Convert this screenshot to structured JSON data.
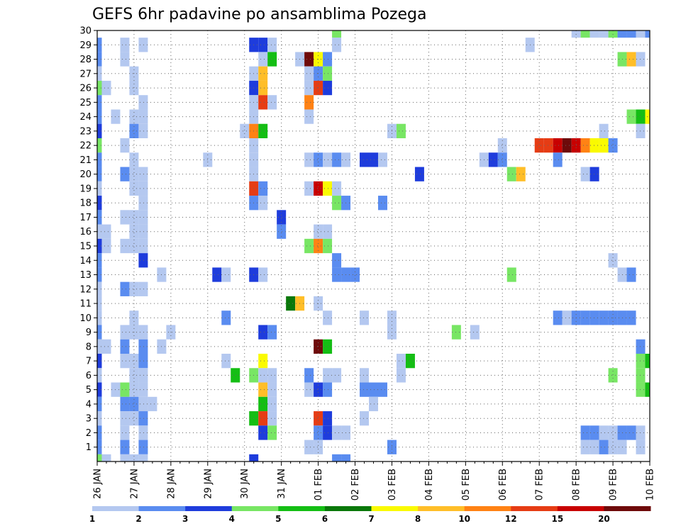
{
  "chart_data": {
    "type": "heatmap",
    "title": "GEFS 6hr padavine po ansamblima Pozega",
    "xlabel": "",
    "ylabel": "",
    "x_start": "26 JAN 00Z",
    "x_step_hours": 6,
    "x_steps": 60,
    "x_tick_labels": [
      "26 JAN",
      "27 JAN",
      "28 JAN",
      "29 JAN",
      "30 JAN",
      "31 JAN",
      "01 FEB",
      "02 FEB",
      "03 FEB",
      "04 FEB",
      "05 FEB",
      "06 FEB",
      "07 FEB",
      "08 FEB",
      "09 FEB",
      "10 FEB"
    ],
    "y_range": [
      0,
      30
    ],
    "y_ticks": [
      1,
      2,
      3,
      4,
      5,
      6,
      7,
      8,
      9,
      10,
      11,
      12,
      13,
      14,
      15,
      16,
      17,
      18,
      19,
      20,
      21,
      22,
      23,
      24,
      25,
      26,
      27,
      28,
      29,
      30
    ],
    "grid": true,
    "colorbar": {
      "labels": [
        "1",
        "2",
        "3",
        "4",
        "5",
        "6",
        "7",
        "8",
        "10",
        "12",
        "15",
        "20"
      ],
      "colors": [
        "#b4c8f0",
        "#5a8cf0",
        "#1e3cdc",
        "#78e664",
        "#14be14",
        "#0a780a",
        "#fafa00",
        "#ffbe28",
        "#ff8214",
        "#e63c14",
        "#c80000",
        "#6e0a0a"
      ]
    },
    "cells": [
      [
        0,
        29,
        "#5a8cf0"
      ],
      [
        0,
        28,
        "#5a8cf0"
      ],
      [
        0,
        27,
        "#b4c8f0"
      ],
      [
        0,
        26,
        "#78e664"
      ],
      [
        0,
        25,
        "#5a8cf0"
      ],
      [
        0,
        24,
        "#5a8cf0"
      ],
      [
        0,
        23,
        "#1e3cdc"
      ],
      [
        0,
        22,
        "#78e664"
      ],
      [
        0,
        21,
        "#5a8cf0"
      ],
      [
        0,
        20,
        "#5a8cf0"
      ],
      [
        0,
        19,
        "#b4c8f0"
      ],
      [
        0,
        18,
        "#1e3cdc"
      ],
      [
        0,
        17,
        "#5a8cf0"
      ],
      [
        0,
        16,
        "#b4c8f0"
      ],
      [
        0,
        15,
        "#1e3cdc"
      ],
      [
        0,
        14,
        "#5a8cf0"
      ],
      [
        0,
        13,
        "#5a8cf0"
      ],
      [
        0,
        12,
        "#b4c8f0"
      ],
      [
        0,
        11,
        "#b4c8f0"
      ],
      [
        0,
        10,
        "#b4c8f0"
      ],
      [
        0,
        9,
        "#5a8cf0"
      ],
      [
        0,
        8,
        "#b4c8f0"
      ],
      [
        0,
        7,
        "#1e3cdc"
      ],
      [
        0,
        6,
        "#b4c8f0"
      ],
      [
        0,
        5,
        "#1e3cdc"
      ],
      [
        0,
        4,
        "#5a8cf0"
      ],
      [
        0,
        3,
        "#b4c8f0"
      ],
      [
        0,
        2,
        "#5a8cf0"
      ],
      [
        0,
        1,
        "#5a8cf0"
      ],
      [
        0,
        0,
        "#78e664"
      ],
      [
        1,
        26,
        "#b4c8f0"
      ],
      [
        1,
        16,
        "#b4c8f0"
      ],
      [
        1,
        15,
        "#b4c8f0"
      ],
      [
        1,
        8,
        "#b4c8f0"
      ],
      [
        1,
        0,
        "#b4c8f0"
      ],
      [
        2,
        24,
        "#b4c8f0"
      ],
      [
        2,
        5,
        "#b4c8f0"
      ],
      [
        3,
        29,
        "#b4c8f0"
      ],
      [
        3,
        28,
        "#b4c8f0"
      ],
      [
        3,
        22,
        "#b4c8f0"
      ],
      [
        3,
        20,
        "#5a8cf0"
      ],
      [
        3,
        17,
        "#b4c8f0"
      ],
      [
        3,
        15,
        "#b4c8f0"
      ],
      [
        3,
        12,
        "#5a8cf0"
      ],
      [
        3,
        9,
        "#b4c8f0"
      ],
      [
        3,
        8,
        "#5a8cf0"
      ],
      [
        3,
        7,
        "#b4c8f0"
      ],
      [
        3,
        5,
        "#78e664"
      ],
      [
        3,
        4,
        "#5a8cf0"
      ],
      [
        3,
        3,
        "#b4c8f0"
      ],
      [
        3,
        2,
        "#b4c8f0"
      ],
      [
        3,
        1,
        "#5a8cf0"
      ],
      [
        3,
        0,
        "#b4c8f0"
      ],
      [
        4,
        27,
        "#b4c8f0"
      ],
      [
        4,
        26,
        "#b4c8f0"
      ],
      [
        4,
        24,
        "#b4c8f0"
      ],
      [
        4,
        23,
        "#5a8cf0"
      ],
      [
        4,
        21,
        "#b4c8f0"
      ],
      [
        4,
        20,
        "#b4c8f0"
      ],
      [
        4,
        19,
        "#b4c8f0"
      ],
      [
        4,
        17,
        "#b4c8f0"
      ],
      [
        4,
        16,
        "#b4c8f0"
      ],
      [
        4,
        15,
        "#b4c8f0"
      ],
      [
        4,
        12,
        "#b4c8f0"
      ],
      [
        4,
        10,
        "#b4c8f0"
      ],
      [
        4,
        9,
        "#b4c8f0"
      ],
      [
        4,
        7,
        "#b4c8f0"
      ],
      [
        4,
        6,
        "#b4c8f0"
      ],
      [
        4,
        5,
        "#b4c8f0"
      ],
      [
        4,
        4,
        "#5a8cf0"
      ],
      [
        4,
        3,
        "#b4c8f0"
      ],
      [
        4,
        0,
        "#b4c8f0"
      ],
      [
        5,
        29,
        "#b4c8f0"
      ],
      [
        5,
        25,
        "#b4c8f0"
      ],
      [
        5,
        24,
        "#b4c8f0"
      ],
      [
        5,
        23,
        "#b4c8f0"
      ],
      [
        5,
        20,
        "#b4c8f0"
      ],
      [
        5,
        19,
        "#b4c8f0"
      ],
      [
        5,
        18,
        "#b4c8f0"
      ],
      [
        5,
        17,
        "#b4c8f0"
      ],
      [
        5,
        16,
        "#b4c8f0"
      ],
      [
        5,
        15,
        "#b4c8f0"
      ],
      [
        5,
        14,
        "#1e3cdc"
      ],
      [
        5,
        12,
        "#b4c8f0"
      ],
      [
        5,
        9,
        "#b4c8f0"
      ],
      [
        5,
        8,
        "#5a8cf0"
      ],
      [
        5,
        7,
        "#5a8cf0"
      ],
      [
        5,
        6,
        "#b4c8f0"
      ],
      [
        5,
        5,
        "#b4c8f0"
      ],
      [
        5,
        4,
        "#b4c8f0"
      ],
      [
        5,
        3,
        "#5a8cf0"
      ],
      [
        5,
        2,
        "#b4c8f0"
      ],
      [
        5,
        1,
        "#5a8cf0"
      ],
      [
        5,
        0,
        "#b4c8f0"
      ],
      [
        6,
        4,
        "#b4c8f0"
      ],
      [
        7,
        13,
        "#b4c8f0"
      ],
      [
        7,
        8,
        "#b4c8f0"
      ],
      [
        8,
        9,
        "#b4c8f0"
      ],
      [
        12,
        21,
        "#b4c8f0"
      ],
      [
        13,
        13,
        "#1e3cdc"
      ],
      [
        14,
        13,
        "#b4c8f0"
      ],
      [
        14,
        10,
        "#5a8cf0"
      ],
      [
        14,
        7,
        "#b4c8f0"
      ],
      [
        15,
        6,
        "#14be14"
      ],
      [
        16,
        23,
        "#b4c8f0"
      ],
      [
        17,
        29,
        "#1e3cdc"
      ],
      [
        17,
        27,
        "#b4c8f0"
      ],
      [
        17,
        26,
        "#1e3cdc"
      ],
      [
        17,
        25,
        "#b4c8f0"
      ],
      [
        17,
        24,
        "#b4c8f0"
      ],
      [
        17,
        23,
        "#ff8214"
      ],
      [
        17,
        22,
        "#b4c8f0"
      ],
      [
        17,
        21,
        "#b4c8f0"
      ],
      [
        17,
        20,
        "#b4c8f0"
      ],
      [
        17,
        19,
        "#e63c14"
      ],
      [
        17,
        18,
        "#5a8cf0"
      ],
      [
        17,
        13,
        "#1e3cdc"
      ],
      [
        17,
        6,
        "#78e664"
      ],
      [
        17,
        3,
        "#14be14"
      ],
      [
        17,
        0,
        "#1e3cdc"
      ],
      [
        18,
        29,
        "#1e3cdc"
      ],
      [
        18,
        28,
        "#b4c8f0"
      ],
      [
        18,
        27,
        "#ffbe28"
      ],
      [
        18,
        26,
        "#ffbe28"
      ],
      [
        18,
        25,
        "#e63c14"
      ],
      [
        18,
        23,
        "#14be14"
      ],
      [
        18,
        19,
        "#5a8cf0"
      ],
      [
        18,
        18,
        "#b4c8f0"
      ],
      [
        18,
        13,
        "#b4c8f0"
      ],
      [
        18,
        9,
        "#1e3cdc"
      ],
      [
        18,
        7,
        "#fafa00"
      ],
      [
        18,
        6,
        "#b4c8f0"
      ],
      [
        18,
        5,
        "#ffbe28"
      ],
      [
        18,
        4,
        "#14be14"
      ],
      [
        18,
        3,
        "#e63c14"
      ],
      [
        18,
        2,
        "#1e3cdc"
      ],
      [
        19,
        29,
        "#b4c8f0"
      ],
      [
        19,
        28,
        "#14be14"
      ],
      [
        19,
        25,
        "#b4c8f0"
      ],
      [
        19,
        9,
        "#5a8cf0"
      ],
      [
        19,
        6,
        "#b4c8f0"
      ],
      [
        19,
        5,
        "#b4c8f0"
      ],
      [
        19,
        4,
        "#b4c8f0"
      ],
      [
        19,
        3,
        "#b4c8f0"
      ],
      [
        19,
        2,
        "#78e664"
      ],
      [
        20,
        17,
        "#1e3cdc"
      ],
      [
        20,
        16,
        "#5a8cf0"
      ],
      [
        21,
        11,
        "#0a780a"
      ],
      [
        22,
        28,
        "#b4c8f0"
      ],
      [
        22,
        11,
        "#ffbe28"
      ],
      [
        23,
        28,
        "#6e0a0a"
      ],
      [
        23,
        27,
        "#b4c8f0"
      ],
      [
        23,
        26,
        "#b4c8f0"
      ],
      [
        23,
        25,
        "#ff8214"
      ],
      [
        23,
        24,
        "#b4c8f0"
      ],
      [
        23,
        21,
        "#b4c8f0"
      ],
      [
        23,
        19,
        "#b4c8f0"
      ],
      [
        23,
        15,
        "#78e664"
      ],
      [
        23,
        6,
        "#5a8cf0"
      ],
      [
        23,
        5,
        "#b4c8f0"
      ],
      [
        23,
        1,
        "#b4c8f0"
      ],
      [
        24,
        28,
        "#fafa00"
      ],
      [
        24,
        27,
        "#5a8cf0"
      ],
      [
        24,
        26,
        "#e63c14"
      ],
      [
        24,
        21,
        "#5a8cf0"
      ],
      [
        24,
        19,
        "#c80000"
      ],
      [
        24,
        16,
        "#b4c8f0"
      ],
      [
        24,
        15,
        "#ff8214"
      ],
      [
        24,
        11,
        "#b4c8f0"
      ],
      [
        24,
        8,
        "#6e0a0a"
      ],
      [
        24,
        5,
        "#1e3cdc"
      ],
      [
        24,
        3,
        "#e63c14"
      ],
      [
        24,
        2,
        "#5a8cf0"
      ],
      [
        24,
        1,
        "#b4c8f0"
      ],
      [
        25,
        28,
        "#5a8cf0"
      ],
      [
        25,
        27,
        "#78e664"
      ],
      [
        25,
        26,
        "#1e3cdc"
      ],
      [
        25,
        21,
        "#b4c8f0"
      ],
      [
        25,
        19,
        "#fafa00"
      ],
      [
        25,
        16,
        "#b4c8f0"
      ],
      [
        25,
        15,
        "#78e664"
      ],
      [
        25,
        10,
        "#b4c8f0"
      ],
      [
        25,
        8,
        "#14be14"
      ],
      [
        25,
        6,
        "#b4c8f0"
      ],
      [
        25,
        5,
        "#5a8cf0"
      ],
      [
        25,
        3,
        "#1e3cdc"
      ],
      [
        25,
        2,
        "#1e3cdc"
      ],
      [
        26,
        30,
        "#78e664"
      ],
      [
        26,
        29,
        "#b4c8f0"
      ],
      [
        26,
        21,
        "#5a8cf0"
      ],
      [
        26,
        19,
        "#b4c8f0"
      ],
      [
        26,
        18,
        "#78e664"
      ],
      [
        26,
        14,
        "#5a8cf0"
      ],
      [
        26,
        13,
        "#5a8cf0"
      ],
      [
        26,
        6,
        "#b4c8f0"
      ],
      [
        26,
        2,
        "#b4c8f0"
      ],
      [
        26,
        0,
        "#5a8cf0"
      ],
      [
        27,
        21,
        "#b4c8f0"
      ],
      [
        27,
        18,
        "#5a8cf0"
      ],
      [
        27,
        13,
        "#5a8cf0"
      ],
      [
        27,
        2,
        "#b4c8f0"
      ],
      [
        27,
        0,
        "#5a8cf0"
      ],
      [
        28,
        13,
        "#5a8cf0"
      ],
      [
        29,
        21,
        "#1e3cdc"
      ],
      [
        29,
        10,
        "#b4c8f0"
      ],
      [
        29,
        6,
        "#b4c8f0"
      ],
      [
        29,
        5,
        "#5a8cf0"
      ],
      [
        29,
        3,
        "#b4c8f0"
      ],
      [
        30,
        21,
        "#1e3cdc"
      ],
      [
        30,
        5,
        "#5a8cf0"
      ],
      [
        30,
        4,
        "#b4c8f0"
      ],
      [
        31,
        21,
        "#b4c8f0"
      ],
      [
        31,
        18,
        "#5a8cf0"
      ],
      [
        31,
        5,
        "#5a8cf0"
      ],
      [
        32,
        23,
        "#b4c8f0"
      ],
      [
        32,
        10,
        "#b4c8f0"
      ],
      [
        32,
        9,
        "#b4c8f0"
      ],
      [
        32,
        1,
        "#5a8cf0"
      ],
      [
        33,
        23,
        "#78e664"
      ],
      [
        33,
        7,
        "#b4c8f0"
      ],
      [
        33,
        6,
        "#b4c8f0"
      ],
      [
        34,
        7,
        "#14be14"
      ],
      [
        35,
        20,
        "#1e3cdc"
      ],
      [
        39,
        9,
        "#78e664"
      ],
      [
        41,
        9,
        "#b4c8f0"
      ],
      [
        42,
        21,
        "#b4c8f0"
      ],
      [
        43,
        21,
        "#1e3cdc"
      ],
      [
        44,
        22,
        "#b4c8f0"
      ],
      [
        44,
        21,
        "#5a8cf0"
      ],
      [
        45,
        20,
        "#78e664"
      ],
      [
        45,
        13,
        "#78e664"
      ],
      [
        46,
        20,
        "#ffbe28"
      ],
      [
        47,
        29,
        "#b4c8f0"
      ],
      [
        48,
        22,
        "#e63c14"
      ],
      [
        49,
        22,
        "#e63c14"
      ],
      [
        50,
        22,
        "#c80000"
      ],
      [
        50,
        21,
        "#5a8cf0"
      ],
      [
        50,
        10,
        "#5a8cf0"
      ],
      [
        51,
        22,
        "#6e0a0a"
      ],
      [
        51,
        10,
        "#b4c8f0"
      ],
      [
        52,
        30,
        "#b4c8f0"
      ],
      [
        52,
        22,
        "#c80000"
      ],
      [
        52,
        10,
        "#5a8cf0"
      ],
      [
        53,
        30,
        "#78e664"
      ],
      [
        53,
        22,
        "#ff8214"
      ],
      [
        53,
        20,
        "#b4c8f0"
      ],
      [
        53,
        10,
        "#5a8cf0"
      ],
      [
        53,
        2,
        "#5a8cf0"
      ],
      [
        53,
        1,
        "#b4c8f0"
      ],
      [
        54,
        30,
        "#b4c8f0"
      ],
      [
        54,
        22,
        "#fafa00"
      ],
      [
        54,
        20,
        "#1e3cdc"
      ],
      [
        54,
        10,
        "#5a8cf0"
      ],
      [
        54,
        2,
        "#5a8cf0"
      ],
      [
        54,
        1,
        "#b4c8f0"
      ],
      [
        55,
        30,
        "#b4c8f0"
      ],
      [
        55,
        23,
        "#b4c8f0"
      ],
      [
        55,
        22,
        "#fafa00"
      ],
      [
        55,
        10,
        "#5a8cf0"
      ],
      [
        55,
        2,
        "#b4c8f0"
      ],
      [
        55,
        1,
        "#5a8cf0"
      ],
      [
        56,
        30,
        "#78e664"
      ],
      [
        56,
        22,
        "#5a8cf0"
      ],
      [
        56,
        14,
        "#b4c8f0"
      ],
      [
        56,
        10,
        "#5a8cf0"
      ],
      [
        56,
        6,
        "#78e664"
      ],
      [
        56,
        2,
        "#b4c8f0"
      ],
      [
        56,
        1,
        "#b4c8f0"
      ],
      [
        57,
        30,
        "#5a8cf0"
      ],
      [
        57,
        28,
        "#78e664"
      ],
      [
        57,
        13,
        "#b4c8f0"
      ],
      [
        57,
        10,
        "#5a8cf0"
      ],
      [
        57,
        2,
        "#5a8cf0"
      ],
      [
        57,
        1,
        "#b4c8f0"
      ],
      [
        58,
        30,
        "#5a8cf0"
      ],
      [
        58,
        28,
        "#ffbe28"
      ],
      [
        58,
        24,
        "#78e664"
      ],
      [
        58,
        13,
        "#5a8cf0"
      ],
      [
        58,
        10,
        "#5a8cf0"
      ],
      [
        58,
        2,
        "#5a8cf0"
      ],
      [
        59,
        30,
        "#b4c8f0"
      ],
      [
        59,
        28,
        "#b4c8f0"
      ],
      [
        59,
        24,
        "#14be14"
      ],
      [
        59,
        23,
        "#b4c8f0"
      ],
      [
        59,
        8,
        "#5a8cf0"
      ],
      [
        59,
        7,
        "#78e664"
      ],
      [
        59,
        6,
        "#78e664"
      ],
      [
        59,
        5,
        "#78e664"
      ],
      [
        59,
        2,
        "#b4c8f0"
      ],
      [
        59,
        1,
        "#b4c8f0"
      ],
      [
        60,
        30,
        "#5a8cf0"
      ],
      [
        60,
        24,
        "#fafa00"
      ],
      [
        60,
        7,
        "#14be14"
      ],
      [
        60,
        5,
        "#14be14"
      ]
    ]
  }
}
